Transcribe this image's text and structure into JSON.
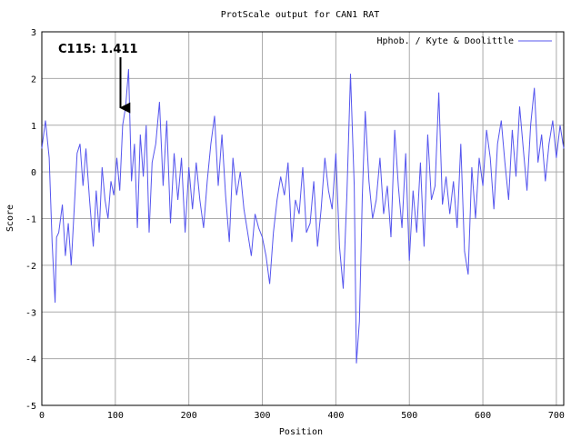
{
  "chart_data": {
    "type": "line",
    "title": "ProtScale output for CAN1 RAT",
    "xlabel": "Position",
    "ylabel": "Score",
    "xlim": [
      0,
      710
    ],
    "ylim": [
      -5,
      3
    ],
    "xticks": [
      0,
      100,
      200,
      300,
      400,
      500,
      600,
      700
    ],
    "yticks": [
      -5,
      -4,
      -3,
      -2,
      -1,
      0,
      1,
      2,
      3
    ],
    "grid": true,
    "legend": "top-right",
    "series": [
      {
        "name": "Hphob. / Kyte & Doolittle",
        "color": "#5555ee",
        "x": [
          0,
          5,
          10,
          14,
          18,
          20,
          23,
          28,
          32,
          36,
          40,
          44,
          48,
          52,
          56,
          60,
          65,
          70,
          74,
          78,
          82,
          86,
          90,
          94,
          98,
          102,
          106,
          110,
          114,
          118,
          122,
          126,
          130,
          134,
          138,
          142,
          146,
          150,
          155,
          160,
          165,
          170,
          175,
          180,
          185,
          190,
          195,
          200,
          205,
          210,
          215,
          220,
          225,
          230,
          235,
          240,
          245,
          250,
          255,
          260,
          265,
          270,
          275,
          280,
          285,
          290,
          295,
          300,
          305,
          310,
          315,
          320,
          325,
          330,
          335,
          340,
          345,
          350,
          355,
          360,
          365,
          370,
          375,
          380,
          385,
          390,
          395,
          400,
          405,
          410,
          415,
          420,
          425,
          428,
          432,
          436,
          440,
          445,
          450,
          455,
          460,
          465,
          470,
          475,
          480,
          485,
          490,
          495,
          500,
          505,
          510,
          515,
          520,
          525,
          530,
          535,
          540,
          545,
          550,
          555,
          560,
          565,
          570,
          575,
          580,
          585,
          590,
          595,
          600,
          605,
          610,
          615,
          620,
          625,
          630,
          635,
          640,
          645,
          650,
          655,
          660,
          665,
          670,
          675,
          680,
          685,
          690,
          695,
          700,
          705,
          710
        ],
        "values": [
          0.5,
          1.1,
          0.3,
          -1.5,
          -2.8,
          -1.4,
          -1.3,
          -0.7,
          -1.8,
          -1.1,
          -2.0,
          -0.8,
          0.4,
          0.6,
          -0.3,
          0.5,
          -0.6,
          -1.6,
          -0.4,
          -1.3,
          0.1,
          -0.6,
          -1.0,
          -0.2,
          -0.5,
          0.3,
          -0.4,
          1.0,
          1.4,
          2.2,
          -0.2,
          0.6,
          -1.2,
          0.8,
          -0.1,
          1.0,
          -1.3,
          0.2,
          0.6,
          1.5,
          -0.3,
          1.1,
          -1.1,
          0.4,
          -0.6,
          0.3,
          -1.3,
          0.1,
          -0.8,
          0.2,
          -0.6,
          -1.2,
          -0.2,
          0.6,
          1.2,
          -0.3,
          0.8,
          -0.5,
          -1.5,
          0.3,
          -0.5,
          0.0,
          -0.8,
          -1.3,
          -1.8,
          -0.9,
          -1.2,
          -1.4,
          -1.8,
          -2.4,
          -1.3,
          -0.6,
          -0.1,
          -0.5,
          0.2,
          -1.5,
          -0.6,
          -0.9,
          0.1,
          -1.3,
          -1.1,
          -0.2,
          -1.6,
          -0.8,
          0.3,
          -0.4,
          -0.8,
          0.4,
          -1.6,
          -2.5,
          -0.5,
          2.1,
          -0.3,
          -4.1,
          -3.2,
          -0.5,
          1.3,
          -0.2,
          -1.0,
          -0.6,
          0.3,
          -0.9,
          -0.3,
          -1.4,
          0.9,
          -0.3,
          -1.2,
          0.4,
          -1.9,
          -0.4,
          -1.3,
          0.2,
          -1.6,
          0.8,
          -0.6,
          -0.3,
          1.7,
          -0.7,
          -0.1,
          -0.9,
          -0.2,
          -1.2,
          0.6,
          -1.7,
          -2.2,
          0.1,
          -1.0,
          0.3,
          -0.3,
          0.9,
          0.3,
          -0.8,
          0.6,
          1.1,
          0.2,
          -0.6,
          0.9,
          -0.1,
          1.4,
          0.5,
          -0.4,
          1.0,
          1.8,
          0.2,
          0.8,
          -0.2,
          0.6,
          1.1,
          0.3,
          1.0,
          0.5
        ]
      }
    ],
    "annotations": [
      {
        "text": "C115: 1.411",
        "x": 107,
        "y": 1.411
      }
    ]
  }
}
